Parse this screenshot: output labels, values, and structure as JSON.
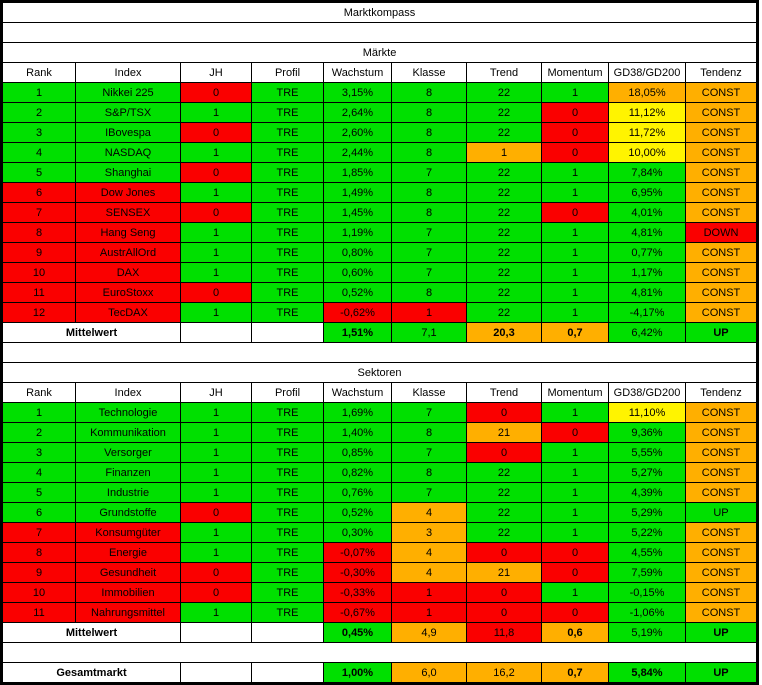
{
  "title": "Marktkompass",
  "palette": {
    "g": "#00e000",
    "r": "#fa0000",
    "o": "#ffaf00",
    "y": "#fff400",
    "w": "#ffffff"
  },
  "columns": [
    "Rank",
    "Index",
    "JH",
    "Profil",
    "Wachstum",
    "Klasse",
    "Trend",
    "Momentum",
    "GD38/GD200",
    "Tendenz"
  ],
  "sections": [
    {
      "label": "Märkte",
      "rows": [
        {
          "cells": [
            [
              "1",
              "g"
            ],
            [
              "Nikkei 225",
              "g"
            ],
            [
              "0",
              "r"
            ],
            [
              "TRE",
              "g"
            ],
            [
              "3,15%",
              "g"
            ],
            [
              "8",
              "g"
            ],
            [
              "22",
              "g"
            ],
            [
              "1",
              "g"
            ],
            [
              "18,05%",
              "o"
            ],
            [
              "CONST",
              "o"
            ]
          ]
        },
        {
          "cells": [
            [
              "2",
              "g"
            ],
            [
              "S&P/TSX",
              "g"
            ],
            [
              "1",
              "g"
            ],
            [
              "TRE",
              "g"
            ],
            [
              "2,64%",
              "g"
            ],
            [
              "8",
              "g"
            ],
            [
              "22",
              "g"
            ],
            [
              "0",
              "r"
            ],
            [
              "11,12%",
              "y"
            ],
            [
              "CONST",
              "o"
            ]
          ]
        },
        {
          "cells": [
            [
              "3",
              "g"
            ],
            [
              "IBovespa",
              "g"
            ],
            [
              "0",
              "r"
            ],
            [
              "TRE",
              "g"
            ],
            [
              "2,60%",
              "g"
            ],
            [
              "8",
              "g"
            ],
            [
              "22",
              "g"
            ],
            [
              "0",
              "r"
            ],
            [
              "11,72%",
              "y"
            ],
            [
              "CONST",
              "o"
            ]
          ]
        },
        {
          "cells": [
            [
              "4",
              "g"
            ],
            [
              "NASDAQ",
              "g"
            ],
            [
              "1",
              "g"
            ],
            [
              "TRE",
              "g"
            ],
            [
              "2,44%",
              "g"
            ],
            [
              "8",
              "g"
            ],
            [
              "1",
              "o"
            ],
            [
              "0",
              "r"
            ],
            [
              "10,00%",
              "y"
            ],
            [
              "CONST",
              "o"
            ]
          ]
        },
        {
          "cells": [
            [
              "5",
              "g"
            ],
            [
              "Shanghai",
              "g"
            ],
            [
              "0",
              "r"
            ],
            [
              "TRE",
              "g"
            ],
            [
              "1,85%",
              "g"
            ],
            [
              "7",
              "g"
            ],
            [
              "22",
              "g"
            ],
            [
              "1",
              "g"
            ],
            [
              "7,84%",
              "g"
            ],
            [
              "CONST",
              "o"
            ]
          ]
        },
        {
          "cells": [
            [
              "6",
              "r"
            ],
            [
              "Dow Jones",
              "r"
            ],
            [
              "1",
              "g"
            ],
            [
              "TRE",
              "g"
            ],
            [
              "1,49%",
              "g"
            ],
            [
              "8",
              "g"
            ],
            [
              "22",
              "g"
            ],
            [
              "1",
              "g"
            ],
            [
              "6,95%",
              "g"
            ],
            [
              "CONST",
              "o"
            ]
          ]
        },
        {
          "cells": [
            [
              "7",
              "r"
            ],
            [
              "SENSEX",
              "r"
            ],
            [
              "0",
              "r"
            ],
            [
              "TRE",
              "g"
            ],
            [
              "1,45%",
              "g"
            ],
            [
              "8",
              "g"
            ],
            [
              "22",
              "g"
            ],
            [
              "0",
              "r"
            ],
            [
              "4,01%",
              "g"
            ],
            [
              "CONST",
              "o"
            ]
          ]
        },
        {
          "cells": [
            [
              "8",
              "r"
            ],
            [
              "Hang Seng",
              "r"
            ],
            [
              "1",
              "g"
            ],
            [
              "TRE",
              "g"
            ],
            [
              "1,19%",
              "g"
            ],
            [
              "7",
              "g"
            ],
            [
              "22",
              "g"
            ],
            [
              "1",
              "g"
            ],
            [
              "4,81%",
              "g"
            ],
            [
              "DOWN",
              "r"
            ]
          ]
        },
        {
          "cells": [
            [
              "9",
              "r"
            ],
            [
              "AustrAllOrd",
              "r"
            ],
            [
              "1",
              "g"
            ],
            [
              "TRE",
              "g"
            ],
            [
              "0,80%",
              "g"
            ],
            [
              "7",
              "g"
            ],
            [
              "22",
              "g"
            ],
            [
              "1",
              "g"
            ],
            [
              "0,77%",
              "g"
            ],
            [
              "CONST",
              "o"
            ]
          ]
        },
        {
          "cells": [
            [
              "10",
              "r"
            ],
            [
              "DAX",
              "r"
            ],
            [
              "1",
              "g"
            ],
            [
              "TRE",
              "g"
            ],
            [
              "0,60%",
              "g"
            ],
            [
              "7",
              "g"
            ],
            [
              "22",
              "g"
            ],
            [
              "1",
              "g"
            ],
            [
              "1,17%",
              "g"
            ],
            [
              "CONST",
              "o"
            ]
          ]
        },
        {
          "cells": [
            [
              "11",
              "r"
            ],
            [
              "EuroStoxx",
              "r"
            ],
            [
              "0",
              "r"
            ],
            [
              "TRE",
              "g"
            ],
            [
              "0,52%",
              "g"
            ],
            [
              "8",
              "g"
            ],
            [
              "22",
              "g"
            ],
            [
              "1",
              "g"
            ],
            [
              "4,81%",
              "g"
            ],
            [
              "CONST",
              "o"
            ]
          ]
        },
        {
          "cells": [
            [
              "12",
              "r"
            ],
            [
              "TecDAX",
              "r"
            ],
            [
              "1",
              "g"
            ],
            [
              "TRE",
              "g"
            ],
            [
              "-0,62%",
              "r"
            ],
            [
              "1",
              "r"
            ],
            [
              "22",
              "g"
            ],
            [
              "1",
              "g"
            ],
            [
              "-4,17%",
              "g"
            ],
            [
              "CONST",
              "o"
            ]
          ]
        }
      ],
      "summary": {
        "label": "Mittelwert",
        "cells": [
          [
            "1,51%",
            "g",
            "b"
          ],
          [
            "7,1",
            "g",
            ""
          ],
          [
            "20,3",
            "o",
            "b"
          ],
          [
            "0,7",
            "o",
            "b"
          ],
          [
            "6,42%",
            "g",
            ""
          ],
          [
            "UP",
            "g",
            "b"
          ]
        ]
      }
    },
    {
      "label": "Sektoren",
      "rows": [
        {
          "cells": [
            [
              "1",
              "g"
            ],
            [
              "Technologie",
              "g"
            ],
            [
              "1",
              "g"
            ],
            [
              "TRE",
              "g"
            ],
            [
              "1,69%",
              "g"
            ],
            [
              "7",
              "g"
            ],
            [
              "0",
              "r"
            ],
            [
              "1",
              "g"
            ],
            [
              "11,10%",
              "y"
            ],
            [
              "CONST",
              "o"
            ]
          ]
        },
        {
          "cells": [
            [
              "2",
              "g"
            ],
            [
              "Kommunikation",
              "g"
            ],
            [
              "1",
              "g"
            ],
            [
              "TRE",
              "g"
            ],
            [
              "1,40%",
              "g"
            ],
            [
              "8",
              "g"
            ],
            [
              "21",
              "o"
            ],
            [
              "0",
              "r"
            ],
            [
              "9,36%",
              "g"
            ],
            [
              "CONST",
              "o"
            ]
          ]
        },
        {
          "cells": [
            [
              "3",
              "g"
            ],
            [
              "Versorger",
              "g"
            ],
            [
              "1",
              "g"
            ],
            [
              "TRE",
              "g"
            ],
            [
              "0,85%",
              "g"
            ],
            [
              "7",
              "g"
            ],
            [
              "0",
              "r"
            ],
            [
              "1",
              "g"
            ],
            [
              "5,55%",
              "g"
            ],
            [
              "CONST",
              "o"
            ]
          ]
        },
        {
          "cells": [
            [
              "4",
              "g"
            ],
            [
              "Finanzen",
              "g"
            ],
            [
              "1",
              "g"
            ],
            [
              "TRE",
              "g"
            ],
            [
              "0,82%",
              "g"
            ],
            [
              "8",
              "g"
            ],
            [
              "22",
              "g"
            ],
            [
              "1",
              "g"
            ],
            [
              "5,27%",
              "g"
            ],
            [
              "CONST",
              "o"
            ]
          ]
        },
        {
          "cells": [
            [
              "5",
              "g"
            ],
            [
              "Industrie",
              "g"
            ],
            [
              "1",
              "g"
            ],
            [
              "TRE",
              "g"
            ],
            [
              "0,76%",
              "g"
            ],
            [
              "7",
              "g"
            ],
            [
              "22",
              "g"
            ],
            [
              "1",
              "g"
            ],
            [
              "4,39%",
              "g"
            ],
            [
              "CONST",
              "o"
            ]
          ]
        },
        {
          "cells": [
            [
              "6",
              "g"
            ],
            [
              "Grundstoffe",
              "g"
            ],
            [
              "0",
              "r"
            ],
            [
              "TRE",
              "g"
            ],
            [
              "0,52%",
              "g"
            ],
            [
              "4",
              "o"
            ],
            [
              "22",
              "g"
            ],
            [
              "1",
              "g"
            ],
            [
              "5,29%",
              "g"
            ],
            [
              "UP",
              "g"
            ]
          ]
        },
        {
          "cells": [
            [
              "7",
              "r"
            ],
            [
              "Konsumgüter",
              "r"
            ],
            [
              "1",
              "g"
            ],
            [
              "TRE",
              "g"
            ],
            [
              "0,30%",
              "g"
            ],
            [
              "3",
              "o"
            ],
            [
              "22",
              "g"
            ],
            [
              "1",
              "g"
            ],
            [
              "5,22%",
              "g"
            ],
            [
              "CONST",
              "o"
            ]
          ]
        },
        {
          "cells": [
            [
              "8",
              "r"
            ],
            [
              "Energie",
              "r"
            ],
            [
              "1",
              "g"
            ],
            [
              "TRE",
              "g"
            ],
            [
              "-0,07%",
              "r"
            ],
            [
              "4",
              "o"
            ],
            [
              "0",
              "r"
            ],
            [
              "0",
              "r"
            ],
            [
              "4,55%",
              "g"
            ],
            [
              "CONST",
              "o"
            ]
          ]
        },
        {
          "cells": [
            [
              "9",
              "r"
            ],
            [
              "Gesundheit",
              "r"
            ],
            [
              "0",
              "r"
            ],
            [
              "TRE",
              "g"
            ],
            [
              "-0,30%",
              "r"
            ],
            [
              "4",
              "o"
            ],
            [
              "21",
              "o"
            ],
            [
              "0",
              "r"
            ],
            [
              "7,59%",
              "g"
            ],
            [
              "CONST",
              "o"
            ]
          ]
        },
        {
          "cells": [
            [
              "10",
              "r"
            ],
            [
              "Immobilien",
              "r"
            ],
            [
              "0",
              "r"
            ],
            [
              "TRE",
              "g"
            ],
            [
              "-0,33%",
              "r"
            ],
            [
              "1",
              "r"
            ],
            [
              "0",
              "r"
            ],
            [
              "1",
              "g"
            ],
            [
              "-0,15%",
              "g"
            ],
            [
              "CONST",
              "o"
            ]
          ]
        },
        {
          "cells": [
            [
              "11",
              "r"
            ],
            [
              "Nahrungsmittel",
              "r"
            ],
            [
              "1",
              "g"
            ],
            [
              "TRE",
              "g"
            ],
            [
              "-0,67%",
              "r"
            ],
            [
              "1",
              "r"
            ],
            [
              "0",
              "r"
            ],
            [
              "0",
              "r"
            ],
            [
              "-1,06%",
              "g"
            ],
            [
              "CONST",
              "o"
            ]
          ]
        }
      ],
      "summary": {
        "label": "Mittelwert",
        "cells": [
          [
            "0,45%",
            "g",
            "b"
          ],
          [
            "4,9",
            "o",
            ""
          ],
          [
            "11,8",
            "r",
            ""
          ],
          [
            "0,6",
            "o",
            "b"
          ],
          [
            "5,19%",
            "g",
            ""
          ],
          [
            "UP",
            "g",
            "b"
          ]
        ]
      }
    }
  ],
  "total": {
    "label": "Gesamtmarkt",
    "cells": [
      [
        "1,00%",
        "g",
        "b"
      ],
      [
        "6,0",
        "o",
        ""
      ],
      [
        "16,2",
        "o",
        ""
      ],
      [
        "0,7",
        "o",
        "b"
      ],
      [
        "5,84%",
        "g",
        "b",
        "c"
      ],
      [
        "UP",
        "g",
        "b"
      ]
    ]
  }
}
